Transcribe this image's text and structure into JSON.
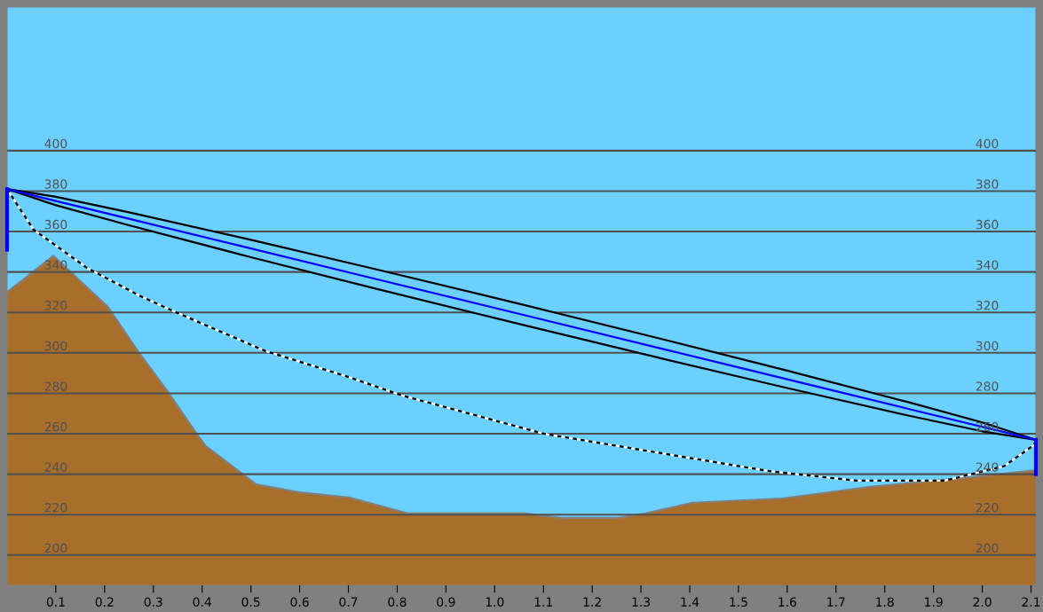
{
  "chart_data": {
    "type": "area",
    "xlim": [
      0,
      2.11
    ],
    "ylim": [
      185,
      471
    ],
    "y2lim": [
      185,
      471
    ],
    "xticks": [
      0.1,
      0.2,
      0.3,
      0.4,
      0.5,
      0.6,
      0.7,
      0.8,
      0.9,
      {
        "value": 1,
        "label": "1.0"
      },
      1.1,
      1.2,
      1.3,
      1.4,
      1.5,
      1.6,
      1.7,
      1.8,
      1.9,
      {
        "value": 2,
        "label": "2.0"
      },
      2.1
    ],
    "yticks": [
      200,
      220,
      240,
      260,
      280,
      300,
      320,
      340,
      360,
      380,
      400
    ],
    "y2ticks": [
      200,
      220,
      240,
      260,
      280,
      300,
      320,
      340,
      360,
      380,
      400
    ],
    "grid": "y",
    "series": [
      {
        "color": "#a86e2c",
        "x": [
          0,
          0.095,
          0.206,
          0.268,
          0.329,
          0.383,
          0.407,
          0.462,
          0.511,
          0.6,
          0.701,
          0.822,
          1.064,
          1.09,
          1.137,
          1.254,
          1.309,
          1.406,
          1.589,
          1.771,
          1.954,
          2.11
        ],
        "values": [
          330,
          348,
          323,
          301,
          281,
          262,
          254,
          244,
          235,
          231,
          228.5,
          220.6,
          220.6,
          219.7,
          218.4,
          218.4,
          220.6,
          225.9,
          228,
          233.8,
          238,
          242
        ]
      },
      {
        "type": "line",
        "color": "#000000",
        "line_style": "dotted",
        "x": [
          0,
          0.054,
          0.164,
          0.274,
          0.347,
          0.529,
          0.701,
          0.809,
          1.101,
          1.406,
          1.558,
          1.74,
          1.923,
          2.045,
          2.106,
          2.11
        ],
        "values": [
          381,
          361,
          342,
          328,
          320,
          301,
          288,
          279,
          260,
          247.8,
          241.7,
          236.8,
          236.8,
          244,
          254.4,
          257
        ]
      },
      {
        "type": "line",
        "color": "#0000ff",
        "x": [
          0,
          0.1,
          0.25,
          0.5,
          0.75,
          1.055,
          1.35,
          1.6,
          1.85,
          2.0,
          2.11
        ],
        "values": [
          381,
          375.1,
          366.3,
          351.6,
          336.9,
          319,
          301.6,
          286.9,
          272.2,
          263.4,
          257
        ],
        "upper": [
          381,
          377.2,
          369.5,
          355.9,
          341.7,
          324,
          306.4,
          291.2,
          275.5,
          265.6,
          257
        ],
        "lower": [
          381,
          373,
          363.1,
          347.3,
          332.1,
          314,
          296.8,
          282.6,
          268.9,
          261.2,
          257
        ]
      },
      {
        "type": "line",
        "color": "#0000ff",
        "x": [
          0,
          0
        ],
        "values": [
          351,
          381
        ]
      },
      {
        "type": "line",
        "color": "#0000ff",
        "x": [
          2.11,
          2.11
        ],
        "values": [
          240,
          257
        ]
      }
    ]
  }
}
